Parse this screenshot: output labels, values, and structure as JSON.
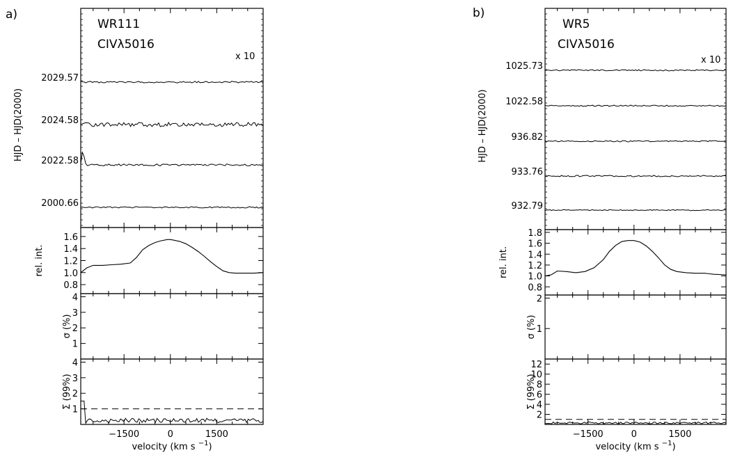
{
  "chart_data": [
    {
      "type": "line",
      "panel_label": "a)",
      "star": "WR111",
      "line": "CIVλ5016",
      "scale_note": "x 10",
      "x_axis": {
        "label": "velocity (km s",
        "label_sup": "−1",
        "label_close": ")",
        "range": [
          -2900,
          3000
        ],
        "ticks": [
          "-1500",
          "0",
          "1500"
        ],
        "tick_values": [
          -1500,
          0,
          1500
        ]
      },
      "time_series": {
        "ylabel": "HJD – HJD(2000)",
        "epochs": [
          "2029.57",
          "2024.58",
          "2022.58",
          "2000.66"
        ],
        "noise_amplitude": [
          0.4,
          1.0,
          0.45,
          0.35
        ],
        "note": "difference spectra, flat with noise"
      },
      "profile": {
        "ylabel": "rel. int.",
        "ylim": [
          0.65,
          1.75
        ],
        "ticks": [
          "0.8",
          "1.0",
          "1.2",
          "1.4",
          "1.6"
        ],
        "tick_values": [
          0.8,
          1.0,
          1.2,
          1.4,
          1.6
        ],
        "x": [
          -2900,
          -2700,
          -2500,
          -2200,
          -1900,
          -1600,
          -1300,
          -1100,
          -900,
          -700,
          -500,
          -300,
          -100,
          0,
          100,
          300,
          500,
          700,
          900,
          1100,
          1300,
          1500,
          1700,
          1900,
          2100,
          2400,
          2700,
          3000
        ],
        "y": [
          1.0,
          1.08,
          1.12,
          1.12,
          1.13,
          1.14,
          1.16,
          1.25,
          1.38,
          1.45,
          1.5,
          1.53,
          1.55,
          1.55,
          1.54,
          1.52,
          1.48,
          1.42,
          1.35,
          1.27,
          1.18,
          1.1,
          1.03,
          1.0,
          0.99,
          0.99,
          0.99,
          1.0
        ]
      },
      "sigma": {
        "ylabel": "σ (%)",
        "ylim": [
          0,
          4.2
        ],
        "ticks": [
          "1",
          "2",
          "3",
          "4"
        ],
        "tick_values": [
          1,
          2,
          3,
          4
        ]
      },
      "significance": {
        "ylabel": "Σ (99%)",
        "ylim": [
          0,
          4.2
        ],
        "ticks": [
          "1",
          "2",
          "3",
          "4"
        ],
        "tick_values": [
          1,
          2,
          3,
          4
        ],
        "threshold": 1.0,
        "spike": {
          "x": -2850,
          "y": 1.5
        },
        "noise_level": 0.25
      }
    },
    {
      "type": "line",
      "panel_label": "b)",
      "star": "WR5",
      "line": "CIVλ5016",
      "scale_note": "x 10",
      "x_axis": {
        "label": "velocity (km s",
        "label_sup": "−1",
        "label_close": ")",
        "range": [
          -2900,
          3000
        ],
        "ticks": [
          "-1500",
          "0",
          "1500"
        ],
        "tick_values": [
          -1500,
          0,
          1500
        ]
      },
      "time_series": {
        "ylabel": "HJD – HJD(2000)",
        "epochs": [
          "1025.73",
          "1022.58",
          "936.82",
          "933.76",
          "932.79"
        ],
        "noise_amplitude": [
          0.3,
          0.3,
          0.3,
          0.35,
          0.25
        ],
        "note": "difference spectra, flat with noise"
      },
      "profile": {
        "ylabel": "rel. int.",
        "ylim": [
          0.65,
          1.85
        ],
        "ticks": [
          "0.8",
          "1.0",
          "1.2",
          "1.4",
          "1.6",
          "1.8"
        ],
        "tick_values": [
          0.8,
          1.0,
          1.2,
          1.4,
          1.6,
          1.8
        ],
        "x": [
          -2900,
          -2700,
          -2500,
          -2200,
          -1900,
          -1600,
          -1300,
          -1000,
          -800,
          -600,
          -400,
          -200,
          0,
          200,
          400,
          600,
          800,
          1000,
          1200,
          1400,
          1700,
          2000,
          2300,
          2600,
          3000
        ],
        "y": [
          1.0,
          1.02,
          1.09,
          1.08,
          1.06,
          1.08,
          1.15,
          1.3,
          1.45,
          1.56,
          1.63,
          1.65,
          1.65,
          1.62,
          1.55,
          1.45,
          1.33,
          1.2,
          1.12,
          1.08,
          1.06,
          1.05,
          1.05,
          1.03,
          1.02
        ]
      },
      "sigma": {
        "ylabel": "σ (%)",
        "ylim": [
          0,
          2.1
        ],
        "ticks": [
          "1",
          "2"
        ],
        "tick_values": [
          1,
          2
        ]
      },
      "significance": {
        "ylabel": "Σ (99%)",
        "ylim": [
          0,
          13
        ],
        "ticks": [
          "2",
          "4",
          "6",
          "8",
          "10",
          "12"
        ],
        "tick_values": [
          2,
          4,
          6,
          8,
          10,
          12
        ],
        "threshold": 1.0,
        "noise_level": 0.3
      }
    }
  ]
}
